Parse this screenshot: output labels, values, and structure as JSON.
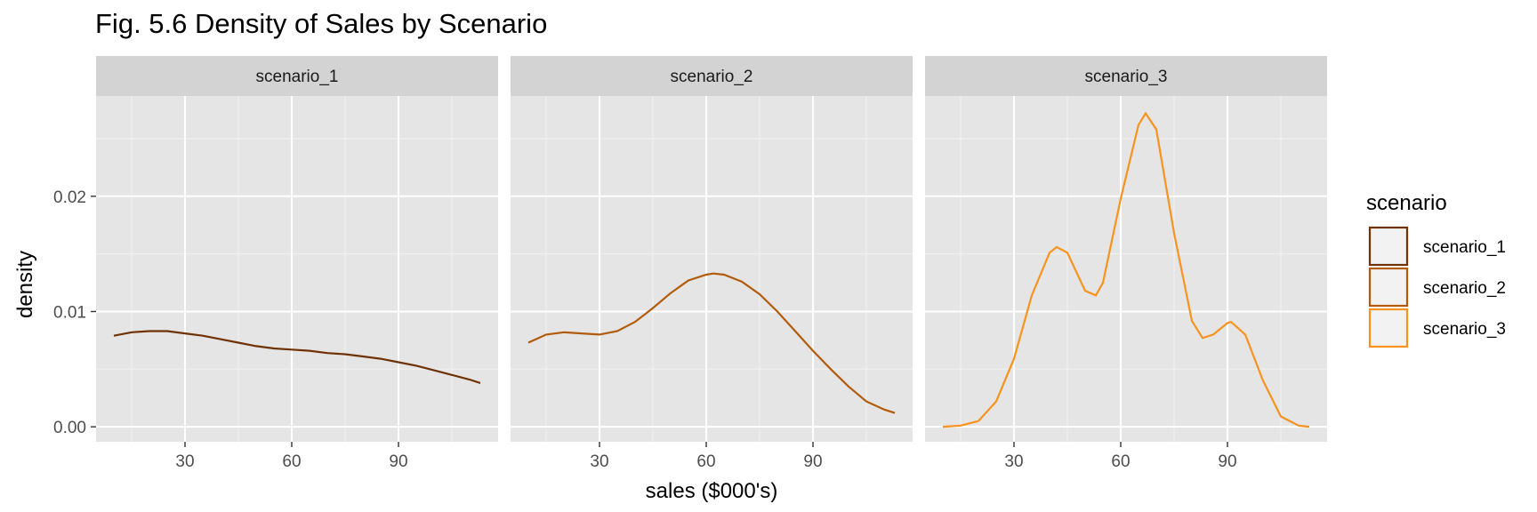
{
  "chart_data": {
    "type": "line",
    "title": "Fig. 5.6 Density of Sales by Scenario",
    "xlabel": "sales ($000's)",
    "ylabel": "density",
    "xlim": [
      5,
      118
    ],
    "ylim": [
      -0.0013,
      0.0287
    ],
    "x_ticks": [
      30,
      60,
      90
    ],
    "x_tick_labels": [
      "30",
      "60",
      "90"
    ],
    "y_ticks": [
      0,
      0.01,
      0.02
    ],
    "y_tick_labels": [
      "0.00",
      "0.01",
      "0.02"
    ],
    "grid": true,
    "legend": {
      "title": "scenario",
      "position": "right",
      "entries": [
        "scenario_1",
        "scenario_2",
        "scenario_3"
      ]
    },
    "series": [
      {
        "name": "scenario_1",
        "color": "#6e3205",
        "x": [
          10,
          15,
          20,
          25,
          30,
          35,
          40,
          45,
          50,
          55,
          60,
          65,
          70,
          75,
          80,
          85,
          90,
          95,
          100,
          105,
          110,
          113
        ],
        "y": [
          0.0079,
          0.0082,
          0.0083,
          0.0083,
          0.0081,
          0.0079,
          0.0076,
          0.0073,
          0.007,
          0.0068,
          0.0067,
          0.0066,
          0.0064,
          0.0063,
          0.0061,
          0.0059,
          0.0056,
          0.0053,
          0.0049,
          0.0045,
          0.0041,
          0.0038
        ]
      },
      {
        "name": "scenario_2",
        "color": "#b25c0b",
        "x": [
          10,
          15,
          20,
          25,
          30,
          35,
          40,
          45,
          50,
          55,
          60,
          62,
          65,
          70,
          75,
          80,
          85,
          90,
          95,
          100,
          105,
          110,
          113
        ],
        "y": [
          0.0073,
          0.008,
          0.0082,
          0.0081,
          0.008,
          0.0083,
          0.0091,
          0.0103,
          0.0116,
          0.0127,
          0.0132,
          0.0133,
          0.0132,
          0.0126,
          0.0115,
          0.01,
          0.0083,
          0.0066,
          0.005,
          0.0035,
          0.0022,
          0.0015,
          0.0012
        ]
      },
      {
        "name": "scenario_3",
        "color": "#f7931e",
        "x": [
          10,
          15,
          20,
          25,
          30,
          35,
          40,
          42,
          45,
          50,
          53,
          55,
          60,
          65,
          67,
          70,
          75,
          80,
          83,
          86,
          90,
          91,
          95,
          100,
          105,
          110,
          113
        ],
        "y": [
          0.0,
          0.0001,
          0.0005,
          0.0022,
          0.0059,
          0.0114,
          0.0151,
          0.0156,
          0.0151,
          0.0118,
          0.0114,
          0.0125,
          0.0198,
          0.0262,
          0.0272,
          0.0258,
          0.0168,
          0.0092,
          0.0077,
          0.008,
          0.009,
          0.0091,
          0.008,
          0.004,
          0.0009,
          0.0001,
          0.0
        ]
      }
    ]
  }
}
